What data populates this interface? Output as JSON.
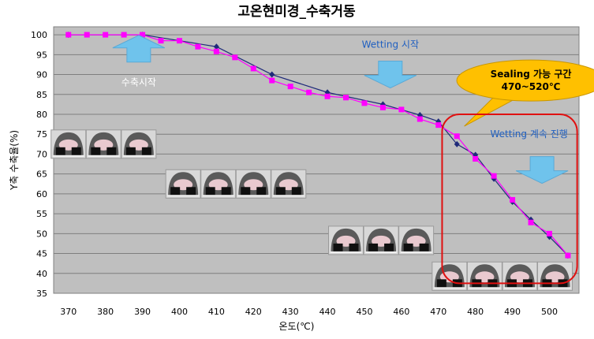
{
  "chart_data": {
    "type": "line",
    "title": "고온현미경_수축거동",
    "xlabel": "온도(℃)",
    "ylabel": "Y축 수축율(%)",
    "xlim": [
      366,
      508
    ],
    "ylim": [
      35,
      102
    ],
    "x_ticks": [
      370,
      380,
      390,
      400,
      410,
      420,
      430,
      440,
      450,
      460,
      470,
      480,
      490,
      500
    ],
    "y_ticks": [
      35,
      40,
      45,
      50,
      55,
      60,
      65,
      70,
      75,
      80,
      85,
      90,
      95,
      100
    ],
    "grid": true,
    "background": "#bfbfbf",
    "series": [
      {
        "marker": "diamond",
        "color": "#1f2a7a",
        "x": [
          370,
          390,
          410,
          425,
          440,
          455,
          465,
          470,
          475,
          480,
          485,
          490,
          495,
          500,
          505
        ],
        "y": [
          100,
          100,
          97,
          90,
          85.5,
          82.5,
          79.8,
          78.2,
          72.5,
          69.8,
          63.8,
          58,
          53.5,
          49.2,
          44.5
        ]
      },
      {
        "marker": "square",
        "color": "#ff00ff",
        "x": [
          370,
          375,
          380,
          385,
          390,
          395,
          400,
          405,
          410,
          415,
          420,
          425,
          430,
          435,
          440,
          445,
          450,
          455,
          460,
          465,
          470,
          475,
          480,
          485,
          490,
          495,
          500,
          505
        ],
        "y": [
          100,
          100,
          100,
          100,
          100,
          98.5,
          98.5,
          97,
          95.8,
          94.3,
          91.5,
          88.5,
          87,
          85.5,
          84.5,
          84.2,
          82.8,
          81.7,
          81.2,
          78.8,
          77.3,
          74.5,
          68.8,
          64.5,
          58.5,
          52.8,
          50,
          44.5
        ]
      }
    ],
    "annotations": [
      {
        "text": "수축시작",
        "arrow": "up",
        "x": 389,
        "y": 96.5,
        "text_x": 389,
        "text_y": 88
      },
      {
        "text": "Wetting 시작",
        "arrow": "down",
        "x": 457,
        "y": 90,
        "text_x": 457,
        "text_y": 97.5
      },
      {
        "text": "Wetting 계속 진행",
        "arrow": "down",
        "x": 498,
        "y": 66,
        "text_x": 494.5,
        "text_y": 75
      },
      {
        "text_lines": [
          "Sealing 가능 구간",
          "470~520℃"
        ],
        "callout": true,
        "x": 495,
        "y": 88.5,
        "pointer_x": 477,
        "pointer_y": 77
      },
      {
        "region": "sealing-range",
        "x_from": 471,
        "x_to": 507.5,
        "y_from": 37.5,
        "y_to": 80
      }
    ],
    "thumbnails": [
      {
        "x": 370,
        "y": 72.5
      },
      {
        "x": 379.5,
        "y": 72.5
      },
      {
        "x": 389,
        "y": 72.5
      },
      {
        "x": 401,
        "y": 62.5
      },
      {
        "x": 410.5,
        "y": 62.5
      },
      {
        "x": 420,
        "y": 62.5
      },
      {
        "x": 429.5,
        "y": 62.5
      },
      {
        "x": 445,
        "y": 48.3
      },
      {
        "x": 454.5,
        "y": 48.3
      },
      {
        "x": 464,
        "y": 48.3
      },
      {
        "x": 473,
        "y": 39.3
      },
      {
        "x": 482.5,
        "y": 39.3
      },
      {
        "x": 492,
        "y": 39.3
      },
      {
        "x": 501.5,
        "y": 39.3
      }
    ]
  }
}
